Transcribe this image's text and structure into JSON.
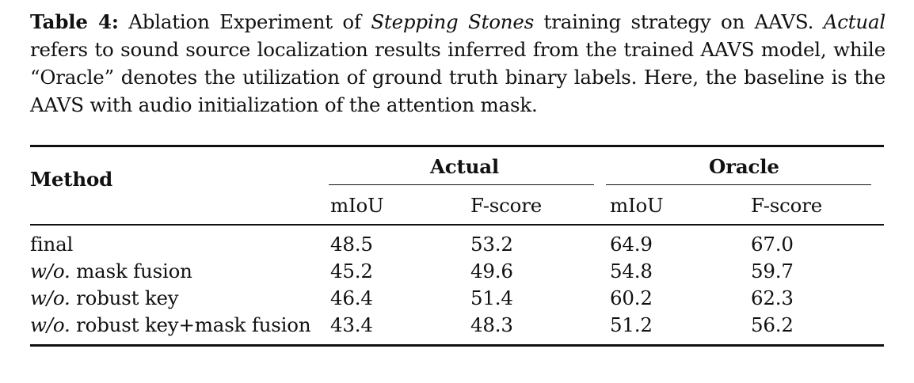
{
  "caption": {
    "label": "Table 4:",
    "seg1": " Ablation Experiment of ",
    "seg1_italic": "Stepping Stones",
    "seg2": " training strategy on AAVS. ",
    "seg2_italic": "Actual",
    "line2": "refers to sound source localization results inferred from the trained AAVS model, while",
    "line3": "“Oracle” denotes the utilization of ground truth binary labels. Here, the baseline is the",
    "line4": "AAVS with audio initialization of the attention mask."
  },
  "table": {
    "method_header": "Method",
    "groups": [
      {
        "label": "Actual",
        "columns": [
          "mIoU",
          "F-score"
        ]
      },
      {
        "label": "Oracle",
        "columns": [
          "mIoU",
          "F-score"
        ]
      }
    ],
    "rows": [
      {
        "prefix": "",
        "method": "final",
        "values": [
          "48.5",
          "53.2",
          "64.9",
          "67.0"
        ]
      },
      {
        "prefix": "w/o.",
        "method": " mask fusion",
        "values": [
          "45.2",
          "49.6",
          "54.8",
          "59.7"
        ]
      },
      {
        "prefix": "w/o.",
        "method": " robust key",
        "values": [
          "46.4",
          "51.4",
          "60.2",
          "62.3"
        ]
      },
      {
        "prefix": "w/o.",
        "method": " robust key+mask fusion",
        "values": [
          "43.4",
          "48.3",
          "51.2",
          "56.2"
        ]
      }
    ]
  }
}
